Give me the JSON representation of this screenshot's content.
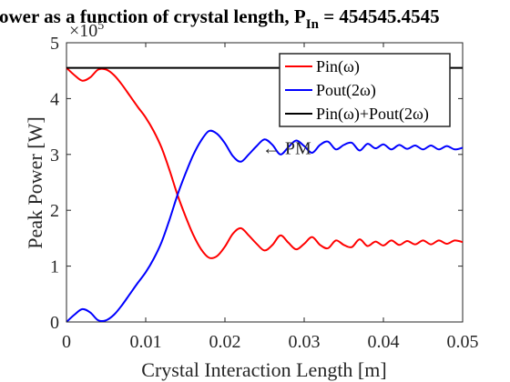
{
  "chart_data": {
    "type": "line",
    "title_main": "ower as a function of crystal length, P",
    "title_sub": "In",
    "title_tail": " = 454545.4545",
    "xlabel": "Crystal Interaction Length [m]",
    "ylabel": "Peak Power [W]",
    "y_exponent_base": "×10",
    "y_exponent_power": "5",
    "xlim": [
      0,
      0.05
    ],
    "ylim": [
      0,
      5
    ],
    "x_ticks": [
      0,
      0.01,
      0.02,
      0.03,
      0.04,
      0.05
    ],
    "x_tick_labels": [
      "0",
      "0.01",
      "0.02",
      "0.03",
      "0.04",
      "0.05"
    ],
    "y_ticks": [
      0,
      1,
      2,
      3,
      4,
      5
    ],
    "y_tick_labels": [
      "0",
      "1",
      "2",
      "3",
      "4",
      "5"
    ],
    "grid": false,
    "legend_position": "top-right",
    "annotation": {
      "text": "← PM",
      "x": 0.0247,
      "y": 3.12
    },
    "series": [
      {
        "name": "Pin(ω)",
        "color": "#ff0000",
        "points": [
          [
            0,
            4.55
          ],
          [
            0.001,
            4.42
          ],
          [
            0.002,
            4.32
          ],
          [
            0.003,
            4.38
          ],
          [
            0.004,
            4.52
          ],
          [
            0.005,
            4.52
          ],
          [
            0.006,
            4.42
          ],
          [
            0.007,
            4.25
          ],
          [
            0.008,
            4.05
          ],
          [
            0.009,
            3.85
          ],
          [
            0.01,
            3.66
          ],
          [
            0.011,
            3.42
          ],
          [
            0.012,
            3.12
          ],
          [
            0.013,
            2.72
          ],
          [
            0.014,
            2.28
          ],
          [
            0.015,
            1.9
          ],
          [
            0.016,
            1.56
          ],
          [
            0.017,
            1.3
          ],
          [
            0.018,
            1.15
          ],
          [
            0.019,
            1.18
          ],
          [
            0.02,
            1.35
          ],
          [
            0.021,
            1.58
          ],
          [
            0.022,
            1.68
          ],
          [
            0.023,
            1.55
          ],
          [
            0.024,
            1.4
          ],
          [
            0.025,
            1.28
          ],
          [
            0.026,
            1.38
          ],
          [
            0.027,
            1.55
          ],
          [
            0.028,
            1.42
          ],
          [
            0.029,
            1.3
          ],
          [
            0.03,
            1.4
          ],
          [
            0.031,
            1.52
          ],
          [
            0.032,
            1.38
          ],
          [
            0.033,
            1.32
          ],
          [
            0.034,
            1.46
          ],
          [
            0.035,
            1.38
          ],
          [
            0.036,
            1.34
          ],
          [
            0.037,
            1.48
          ],
          [
            0.038,
            1.36
          ],
          [
            0.039,
            1.44
          ],
          [
            0.04,
            1.37
          ],
          [
            0.041,
            1.46
          ],
          [
            0.042,
            1.38
          ],
          [
            0.043,
            1.45
          ],
          [
            0.044,
            1.39
          ],
          [
            0.045,
            1.46
          ],
          [
            0.046,
            1.39
          ],
          [
            0.047,
            1.46
          ],
          [
            0.048,
            1.4
          ],
          [
            0.049,
            1.46
          ],
          [
            0.05,
            1.43
          ]
        ]
      },
      {
        "name": "Pout(2ω)",
        "color": "#0000ff",
        "points": [
          [
            0,
            0.0
          ],
          [
            0.001,
            0.13
          ],
          [
            0.002,
            0.23
          ],
          [
            0.003,
            0.17
          ],
          [
            0.004,
            0.03
          ],
          [
            0.005,
            0.03
          ],
          [
            0.006,
            0.13
          ],
          [
            0.007,
            0.3
          ],
          [
            0.008,
            0.5
          ],
          [
            0.009,
            0.7
          ],
          [
            0.01,
            0.89
          ],
          [
            0.011,
            1.13
          ],
          [
            0.012,
            1.43
          ],
          [
            0.013,
            1.83
          ],
          [
            0.014,
            2.27
          ],
          [
            0.015,
            2.65
          ],
          [
            0.016,
            2.99
          ],
          [
            0.017,
            3.25
          ],
          [
            0.018,
            3.42
          ],
          [
            0.019,
            3.37
          ],
          [
            0.02,
            3.2
          ],
          [
            0.021,
            2.97
          ],
          [
            0.022,
            2.87
          ],
          [
            0.023,
            3.0
          ],
          [
            0.024,
            3.15
          ],
          [
            0.025,
            3.27
          ],
          [
            0.026,
            3.17
          ],
          [
            0.027,
            3.0
          ],
          [
            0.028,
            3.13
          ],
          [
            0.029,
            3.25
          ],
          [
            0.03,
            3.15
          ],
          [
            0.031,
            3.03
          ],
          [
            0.032,
            3.17
          ],
          [
            0.033,
            3.23
          ],
          [
            0.034,
            3.09
          ],
          [
            0.035,
            3.17
          ],
          [
            0.036,
            3.21
          ],
          [
            0.037,
            3.07
          ],
          [
            0.038,
            3.19
          ],
          [
            0.039,
            3.11
          ],
          [
            0.04,
            3.18
          ],
          [
            0.041,
            3.09
          ],
          [
            0.042,
            3.17
          ],
          [
            0.043,
            3.1
          ],
          [
            0.044,
            3.16
          ],
          [
            0.045,
            3.09
          ],
          [
            0.046,
            3.16
          ],
          [
            0.047,
            3.09
          ],
          [
            0.048,
            3.15
          ],
          [
            0.049,
            3.09
          ],
          [
            0.05,
            3.12
          ]
        ]
      },
      {
        "name": "Pin(ω)+Pout(2ω)",
        "color": "#000000",
        "points": [
          [
            0,
            4.55
          ],
          [
            0.05,
            4.55
          ]
        ]
      }
    ]
  }
}
